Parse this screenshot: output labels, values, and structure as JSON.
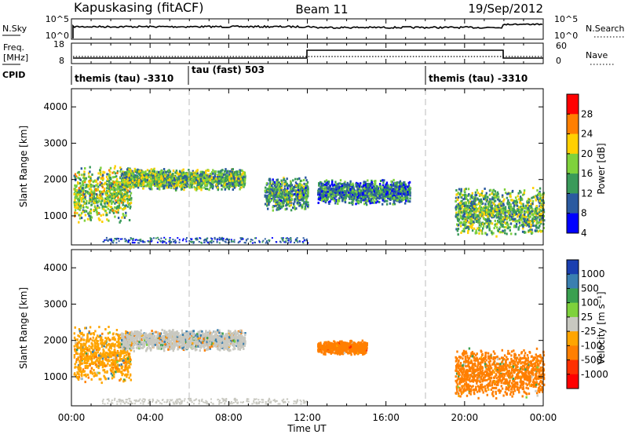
{
  "header": {
    "station": "Kapuskasing (fitACF)",
    "beam": "Beam 11",
    "date": "19/Sep/2012"
  },
  "nsky_panel": {
    "left_label": "N.Sky",
    "right_label": "N.Search",
    "left_ticks": [
      "10^5",
      "10^0"
    ],
    "right_ticks": [
      "10^5",
      "10^0"
    ]
  },
  "freq_panel": {
    "left_label_1": "Freq.",
    "left_label_2": "[MHz]",
    "right_label": "Nave",
    "left_ticks": [
      "18",
      "8"
    ],
    "right_ticks": [
      "60",
      "0"
    ]
  },
  "cpid": {
    "label": "CPID",
    "segments": [
      "themis (tau) -3310",
      "tau (fast) 503",
      "themis (tau) -3310"
    ]
  },
  "x_axis": {
    "title": "Time UT",
    "ticks": [
      "00:00",
      "04:00",
      "08:00",
      "12:00",
      "16:00",
      "20:00",
      "00:00"
    ]
  },
  "chart_data": [
    {
      "type": "heatmap",
      "panel": "power",
      "ylabel": "Slant Range [km]",
      "yticks": [
        "4000",
        "3000",
        "2000",
        "1000"
      ],
      "ylim": [
        200,
        4500
      ],
      "xlim_hours": [
        0,
        24
      ],
      "colorbar_label": "Power [dB]",
      "colorbar_ticks": [
        "28",
        "24",
        "20",
        "16",
        "12",
        "8",
        "4"
      ],
      "colorbar_colors": [
        "#ff0000",
        "#ff7f00",
        "#ffd000",
        "#7fd23c",
        "#3a9a5a",
        "#2b5aa0",
        "#0000ff"
      ],
      "echo_regions": [
        {
          "t_start": 0.1,
          "t_end": 3.0,
          "range_low": 800,
          "range_high": 2400,
          "mean_power_db": 14
        },
        {
          "t_start": 2.5,
          "t_end": 8.8,
          "range_low": 1700,
          "range_high": 2300,
          "mean_power_db": 12
        },
        {
          "t_start": 9.8,
          "t_end": 12.0,
          "range_low": 1100,
          "range_high": 2100,
          "mean_power_db": 10
        },
        {
          "t_start": 12.5,
          "t_end": 17.2,
          "range_low": 1300,
          "range_high": 2000,
          "mean_power_db": 8
        },
        {
          "t_start": 19.5,
          "t_end": 24.0,
          "range_low": 400,
          "range_high": 1800,
          "mean_power_db": 12
        }
      ]
    },
    {
      "type": "heatmap",
      "panel": "velocity",
      "ylabel": "Slant Range [km]",
      "yticks": [
        "4000",
        "3000",
        "2000",
        "1000"
      ],
      "ylim": [
        200,
        4500
      ],
      "xlim_hours": [
        0,
        24
      ],
      "colorbar_label": "Velocity [m s⁻¹]",
      "colorbar_ticks": [
        "1000",
        "500",
        "100",
        "25",
        "-25",
        "-100",
        "-500",
        "-1000"
      ],
      "colorbar_colors": [
        "#1a3fb0",
        "#3a7fb0",
        "#3aa050",
        "#7ed23c",
        "#c8c8c0",
        "#ffa500",
        "#ff7f00",
        "#ff3000",
        "#ff0000"
      ],
      "echo_regions": [
        {
          "t_start": 0.1,
          "t_end": 3.0,
          "range_low": 800,
          "range_high": 2400,
          "mean_velocity": -50
        },
        {
          "t_start": 2.5,
          "t_end": 8.8,
          "range_low": 1700,
          "range_high": 2300,
          "mean_velocity": 0
        },
        {
          "t_start": 12.5,
          "t_end": 15.0,
          "range_low": 1600,
          "range_high": 2000,
          "mean_velocity": -300
        },
        {
          "t_start": 19.5,
          "t_end": 24.0,
          "range_low": 400,
          "range_high": 1800,
          "mean_velocity": -200
        }
      ]
    }
  ]
}
